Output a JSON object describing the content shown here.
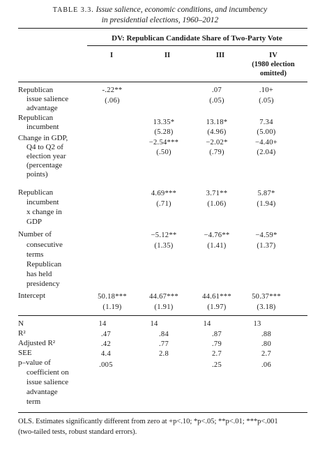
{
  "caption": {
    "table_number": "TABLE 3.3.",
    "title_line1": "Issue salience, economic conditions, and incumbency",
    "title_line2": "in presidential elections, 1960–2012"
  },
  "dv_header": "DV: Republican Candidate Share of Two-Party Vote",
  "columns": [
    {
      "label": "I"
    },
    {
      "label": "II"
    },
    {
      "label": "III"
    },
    {
      "label": "IV",
      "sub1": "(1980 election",
      "sub2": "omitted)"
    }
  ],
  "rows": {
    "salience": {
      "label_lines": [
        "Republican",
        "issue salience",
        "advantage"
      ],
      "values": [
        "‑.22**",
        "",
        ".07",
        ".10+"
      ],
      "ses": [
        "(.06)",
        "",
        "(.05)",
        "(.05)"
      ]
    },
    "incumbent": {
      "label_lines": [
        "Republican",
        "incumbent"
      ],
      "values": [
        "",
        "13.35*",
        "13.18*",
        "7.34"
      ],
      "ses": [
        "",
        "(5.28)",
        "(4.96)",
        "(5.00)"
      ]
    },
    "gdp": {
      "label_lines": [
        "Change in GDP,",
        "Q4 to Q2 of",
        "election year",
        "(percentage",
        "points)"
      ],
      "values": [
        "",
        "−2.54***",
        "−2.02*",
        "−4.40+"
      ],
      "ses": [
        "",
        "(.50)",
        "(.79)",
        "(2.04)"
      ]
    },
    "incumbent_gdp": {
      "label_lines": [
        "Republican",
        "incumbent",
        "x change in",
        "GDP"
      ],
      "values": [
        "",
        "4.69***",
        "3.71**",
        "5.87*"
      ],
      "ses": [
        "",
        "(.71)",
        "(1.06)",
        "(1.94)"
      ]
    },
    "terms": {
      "label_lines": [
        "Number of",
        "consecutive",
        "terms",
        "Republican",
        "has held",
        "presidency"
      ],
      "values": [
        "",
        "−5.12**",
        "−4.76**",
        "−4.59*"
      ],
      "ses": [
        "",
        "(1.35)",
        "(1.41)",
        "(1.37)"
      ]
    },
    "intercept": {
      "label_lines": [
        "Intercept"
      ],
      "values": [
        "50.18***",
        "44.67***",
        "44.61***",
        "50.37***"
      ],
      "ses": [
        "(1.19)",
        "(1.91)",
        "(1.97)",
        "(3.18)"
      ]
    }
  },
  "stats": {
    "n": {
      "label": "N",
      "values": [
        "14",
        "14",
        "14",
        "13"
      ]
    },
    "r2": {
      "label": "R²",
      "values": [
        ".47",
        ".84",
        ".87",
        ".88"
      ]
    },
    "adj_r2": {
      "label": "Adjusted R²",
      "values": [
        ".42",
        ".77",
        ".79",
        ".80"
      ]
    },
    "see": {
      "label": "SEE",
      "values": [
        "4.4",
        "2.8",
        "2.7",
        "2.7"
      ]
    },
    "pval": {
      "label_lines": [
        "p–value of",
        "coefficient on",
        "issue salience",
        "advantage",
        "term"
      ],
      "values": [
        ".005",
        "",
        ".25",
        ".06"
      ]
    }
  },
  "footnote": {
    "line1": "OLS. Estimates significantly different from zero at +p<.10; *p<.05; **p<.01; ***p<.001",
    "line2": "(two-tailed tests, robust standard errors)."
  }
}
